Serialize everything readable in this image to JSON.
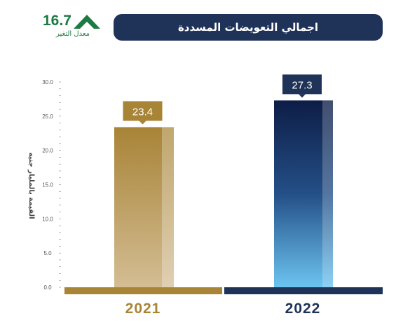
{
  "header": {
    "title": "اجمالي التعويضات المسددة",
    "change_value": "16.7",
    "change_label": "معدل التغير",
    "change_direction": "up"
  },
  "chart_data": {
    "type": "bar",
    "categories": [
      "2021",
      "2022"
    ],
    "values": [
      23.4,
      27.3
    ],
    "data_labels": [
      "23.4",
      "27.3"
    ],
    "ylabel": "القيمة بالمليار جنيه",
    "ylim": [
      0,
      30
    ],
    "yticks": [
      "0.0",
      "5.0",
      "10.0",
      "15.0",
      "20.0",
      "25.0",
      "30.0"
    ],
    "grid": false,
    "colors": {
      "2021": "#a88437",
      "2022": "#1f3258"
    }
  }
}
